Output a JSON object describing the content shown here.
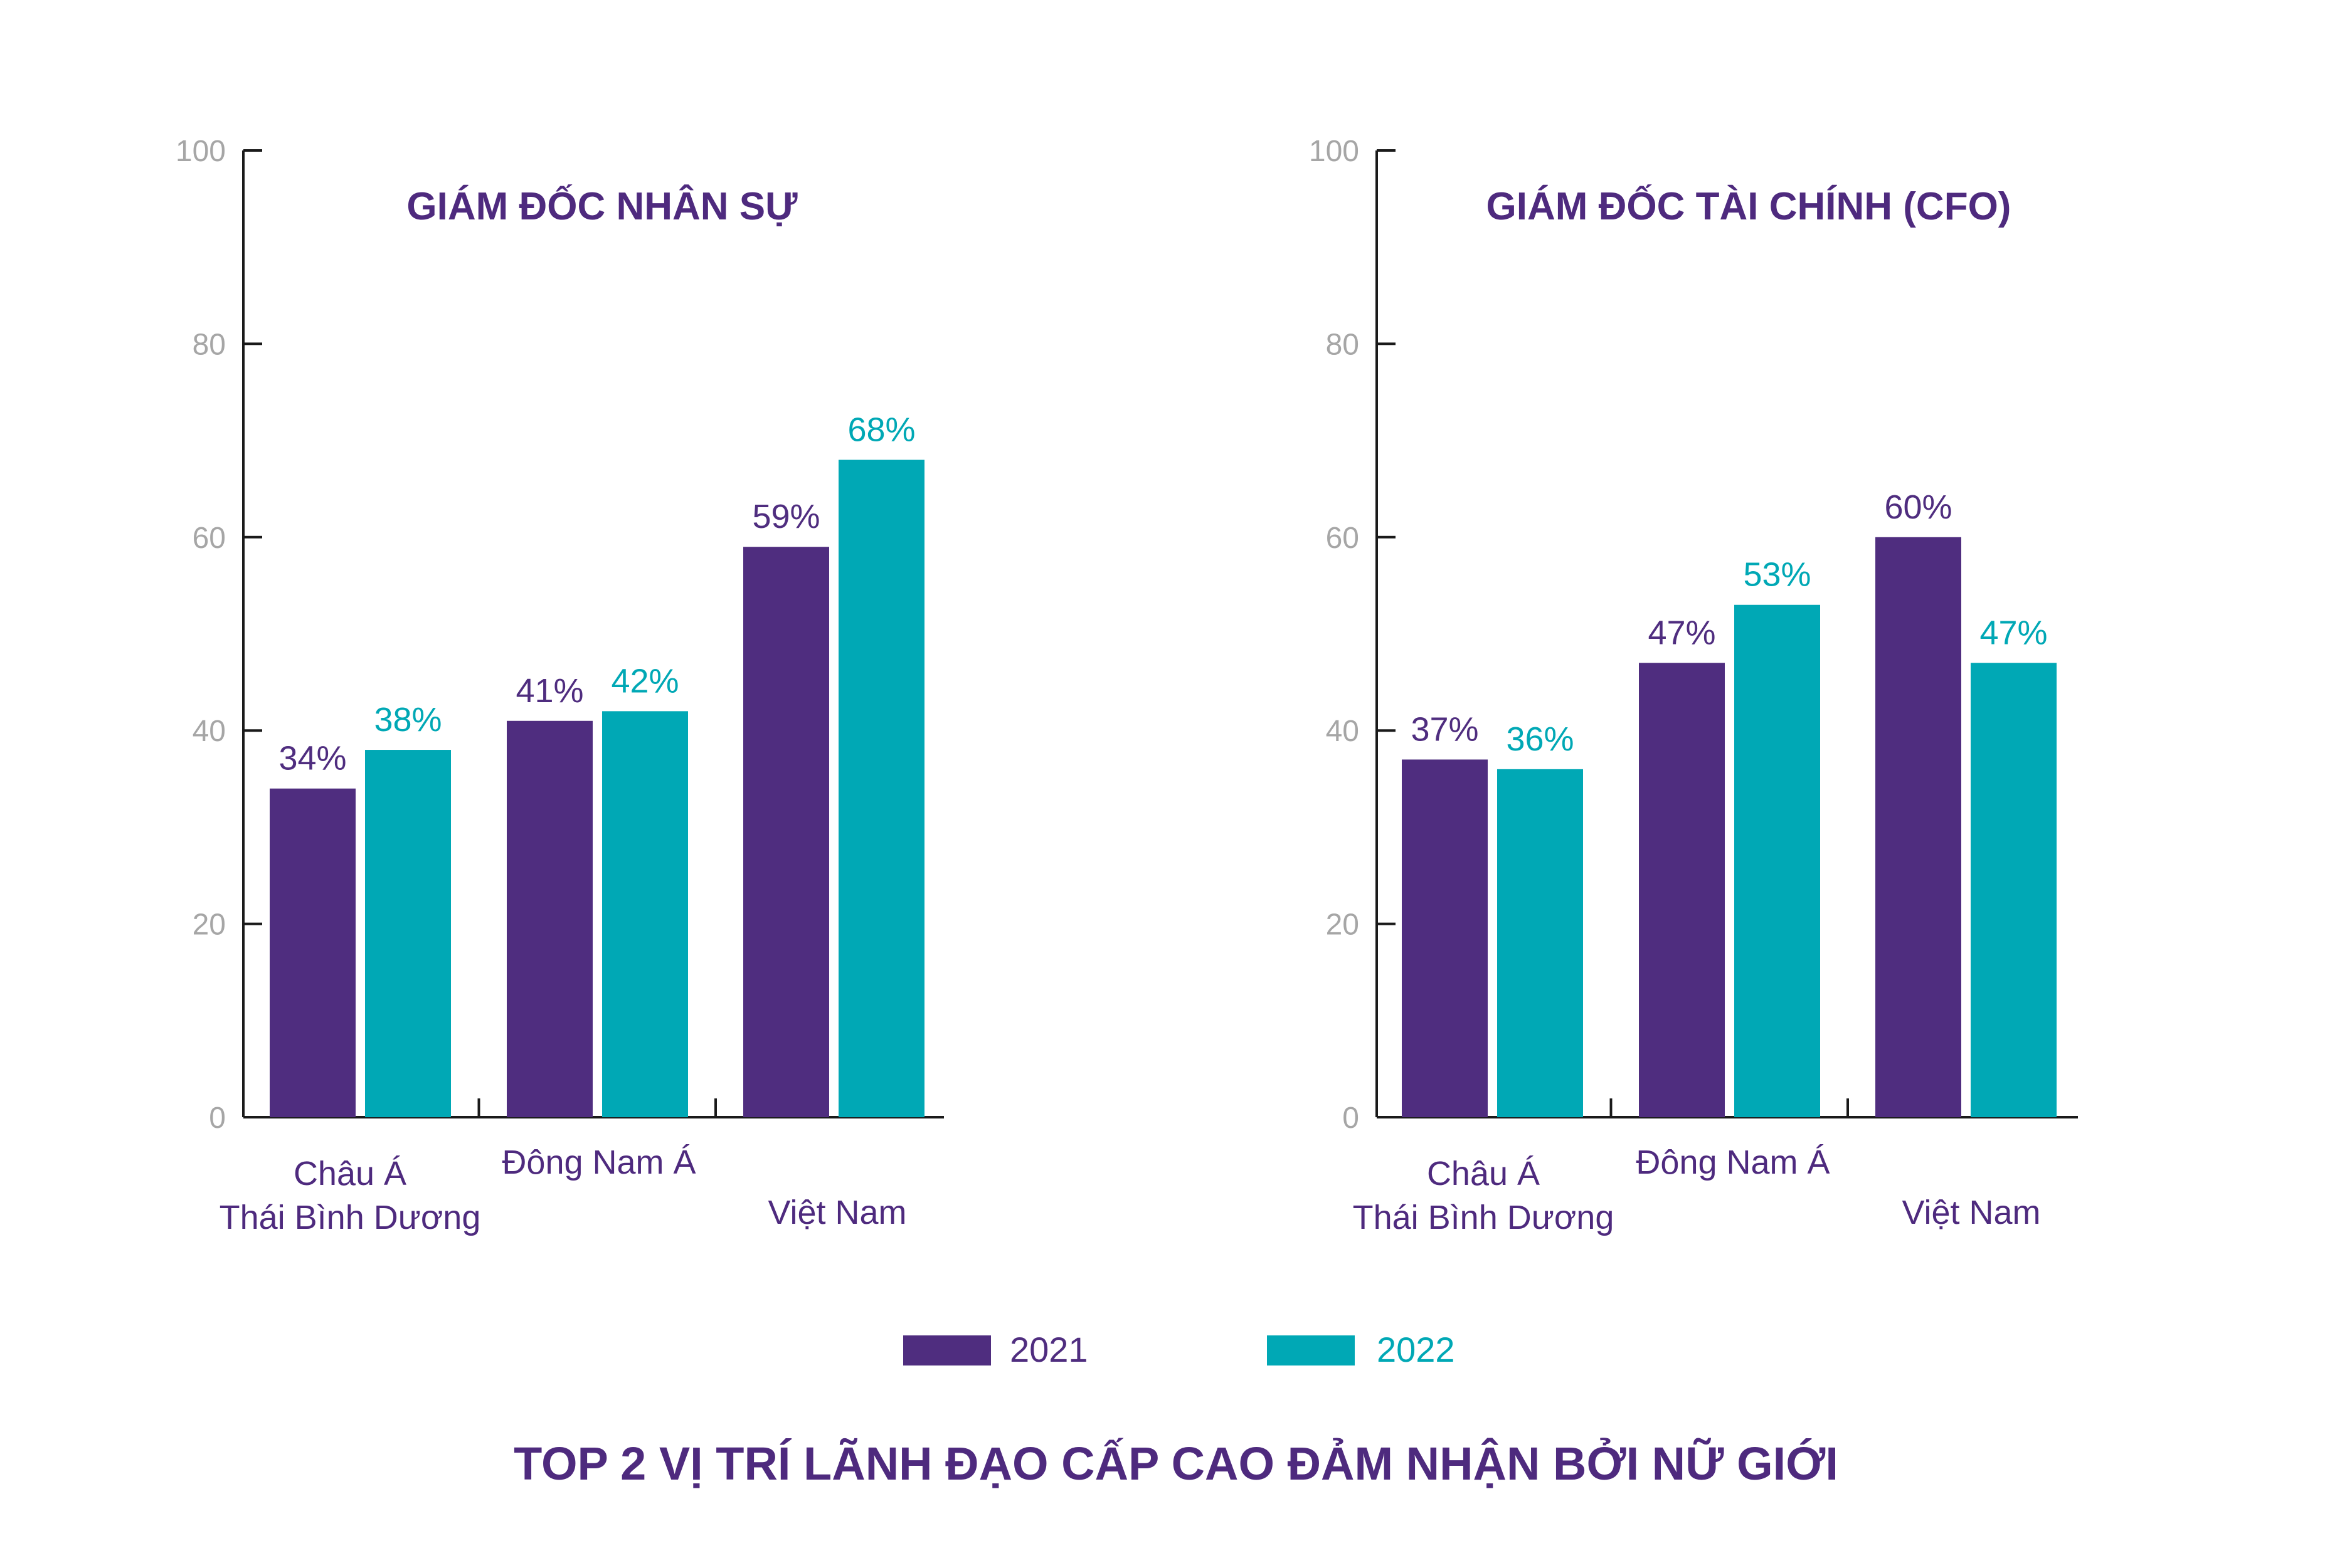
{
  "main_title": "TOP 2 VỊ TRÍ LÃNH ĐẠO CẤP CAO ĐẢM NHẬN BỞI NỮ GIỚI",
  "colors": {
    "s2021": "#4f2d7f",
    "s2022": "#00a8b5",
    "title": "#4e2a7e",
    "tick": "#a6a6a6"
  },
  "legend": [
    {
      "name": "2021",
      "color": "#4f2d7f"
    },
    {
      "name": "2022",
      "color": "#00a8b5"
    }
  ],
  "chart_data": [
    {
      "type": "bar",
      "title": "GIÁM ĐỐC NHÂN SỰ",
      "categories": [
        [
          "Châu Á",
          "Thái Bình Dương"
        ],
        [
          "Đông Nam Á"
        ],
        [
          "Việt Nam"
        ]
      ],
      "series": [
        {
          "name": "2021",
          "values": [
            34,
            41,
            59
          ],
          "labels": [
            "34%",
            "41%",
            "59%"
          ]
        },
        {
          "name": "2022",
          "values": [
            38,
            42,
            68
          ],
          "labels": [
            "38%",
            "42%",
            "68%"
          ]
        }
      ],
      "yticks": [
        "0",
        "20",
        "40",
        "60",
        "80",
        "100"
      ],
      "ylim": [
        0,
        100
      ],
      "xlabel": "",
      "ylabel": ""
    },
    {
      "type": "bar",
      "title": "GIÁM ĐỐC TÀI CHÍNH (CFO)",
      "categories": [
        [
          "Châu Á",
          "Thái Bình Dương"
        ],
        [
          "Đông Nam Á"
        ],
        [
          "Việt Nam"
        ]
      ],
      "series": [
        {
          "name": "2021",
          "values": [
            37,
            47,
            60
          ],
          "labels": [
            "37%",
            "47%",
            "60%"
          ]
        },
        {
          "name": "2022",
          "values": [
            36,
            53,
            47
          ],
          "labels": [
            "36%",
            "53%",
            "47%"
          ]
        }
      ],
      "yticks": [
        "0",
        "20",
        "40",
        "60",
        "80",
        "100"
      ],
      "ylim": [
        0,
        100
      ],
      "xlabel": "",
      "ylabel": ""
    }
  ]
}
